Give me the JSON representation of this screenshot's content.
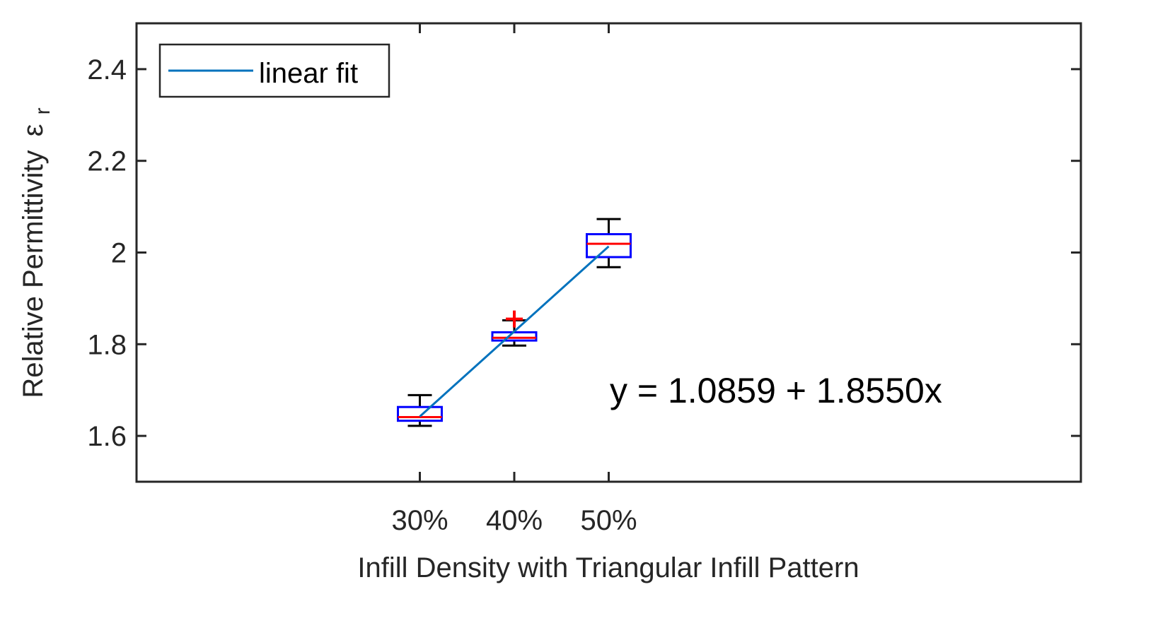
{
  "chart_data": {
    "type": "box",
    "title": "",
    "xlabel": "Infill Density with Triangular Infill Pattern",
    "ylabel_text": "Relative Permittivity",
    "ylabel_symbol": "ε",
    "ylabel_subscript": "r",
    "ylim": [
      1.5,
      2.5
    ],
    "xlim": [
      0,
      10
    ],
    "yticks": [
      1.6,
      1.8,
      2.0,
      2.2,
      2.4
    ],
    "ytick_labels": [
      "1.6",
      "1.8",
      "2",
      "2.2",
      "2.4"
    ],
    "categories": [
      "30%",
      "40%",
      "50%"
    ],
    "category_x": [
      3,
      4,
      5
    ],
    "boxes": [
      {
        "label": "30%",
        "whisker_low": 1.622,
        "q1": 1.633,
        "median": 1.641,
        "q3": 1.663,
        "whisker_high": 1.689,
        "outliers": []
      },
      {
        "label": "40%",
        "whisker_low": 1.797,
        "q1": 1.808,
        "median": 1.814,
        "q3": 1.826,
        "whisker_high": 1.852,
        "outliers": [
          1.855
        ]
      },
      {
        "label": "50%",
        "whisker_low": 1.968,
        "q1": 1.99,
        "median": 2.019,
        "q3": 2.04,
        "whisker_high": 2.073,
        "outliers": []
      }
    ],
    "fit_line": {
      "name": "linear fit",
      "x": [
        3,
        5
      ],
      "y": [
        1.6424,
        2.0134
      ]
    },
    "legend": {
      "entries": [
        "linear fit"
      ],
      "location": "top-left"
    },
    "annotation": "y = 1.0859 + 1.8550x",
    "colors": {
      "box": "#0000ff",
      "median": "#ff0000",
      "whisker": "#000000",
      "outlier": "#ff0000",
      "fit": "#0072bd",
      "axes": "#262626"
    }
  }
}
